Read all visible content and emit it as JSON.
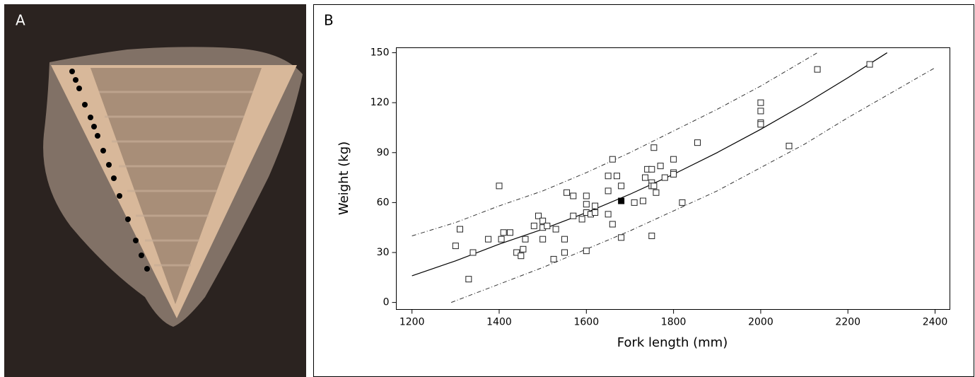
{
  "panel_labels": [
    "A",
    "B"
  ],
  "chart_data": {
    "type": "scatter",
    "xlabel": "Fork length (mm)",
    "ylabel": "Weight (kg)",
    "xlim": [
      1164,
      2434
    ],
    "ylim": [
      -4.2,
      153
    ],
    "xticks": [
      1200,
      1400,
      1600,
      1800,
      2000,
      2200,
      2400
    ],
    "yticks": [
      0,
      30,
      60,
      90,
      120,
      150
    ],
    "series": [
      {
        "marker": "open-square",
        "color": "#222222",
        "x": [
          1300,
          1310,
          1330,
          1340,
          1375,
          1400,
          1405,
          1410,
          1425,
          1440,
          1450,
          1455,
          1460,
          1480,
          1490,
          1500,
          1500,
          1500,
          1510,
          1525,
          1530,
          1550,
          1550,
          1555,
          1570,
          1570,
          1590,
          1600,
          1600,
          1600,
          1600,
          1610,
          1620,
          1620,
          1650,
          1650,
          1650,
          1660,
          1660,
          1670,
          1680,
          1680,
          1710,
          1730,
          1735,
          1740,
          1750,
          1750,
          1750,
          1750,
          1755,
          1755,
          1760,
          1770,
          1780,
          1800,
          1800,
          1800,
          1820,
          1855,
          2000,
          2000,
          2000,
          2000,
          2065,
          2130,
          2250
        ],
        "values": [
          34,
          44,
          14,
          30,
          38,
          70,
          38,
          42,
          42,
          30,
          28,
          32,
          38,
          46,
          52,
          49,
          45,
          38,
          46,
          26,
          44,
          38,
          30,
          66,
          64,
          52,
          50,
          64,
          59,
          54,
          31,
          53,
          58,
          54,
          76,
          67,
          53,
          86,
          47,
          76,
          70,
          39,
          60,
          61,
          75,
          80,
          80,
          72,
          70,
          40,
          93,
          70,
          66,
          82,
          75,
          86,
          78,
          77,
          60,
          96,
          120,
          115,
          108,
          107,
          94,
          140,
          143
        ]
      },
      {
        "marker": "filled-square",
        "color": "#000000",
        "x": [
          1680
        ],
        "values": [
          61
        ]
      }
    ],
    "lines": [
      {
        "style": "solid",
        "color": "#000000",
        "x": [
          1200,
          1300,
          1400,
          1500,
          1600,
          1700,
          1800,
          1900,
          2000,
          2100,
          2200,
          2290
        ],
        "values": [
          16,
          25,
          35,
          44,
          54,
          65,
          77,
          90,
          104,
          119,
          135,
          150
        ]
      },
      {
        "style": "dashed",
        "color": "#333333",
        "x": [
          1200,
          1300,
          1400,
          1500,
          1600,
          1700,
          1800,
          1900,
          2000,
          2130
        ],
        "values": [
          40,
          48,
          58,
          67,
          78,
          90,
          103,
          116,
          130,
          150
        ]
      },
      {
        "style": "dashed",
        "color": "#333333",
        "x": [
          1290,
          1400,
          1500,
          1600,
          1700,
          1800,
          1900,
          2000,
          2100,
          2200,
          2300,
          2400
        ],
        "values": [
          0,
          11,
          21,
          32,
          43,
          55,
          67,
          81,
          95,
          111,
          126,
          141
        ]
      }
    ]
  }
}
